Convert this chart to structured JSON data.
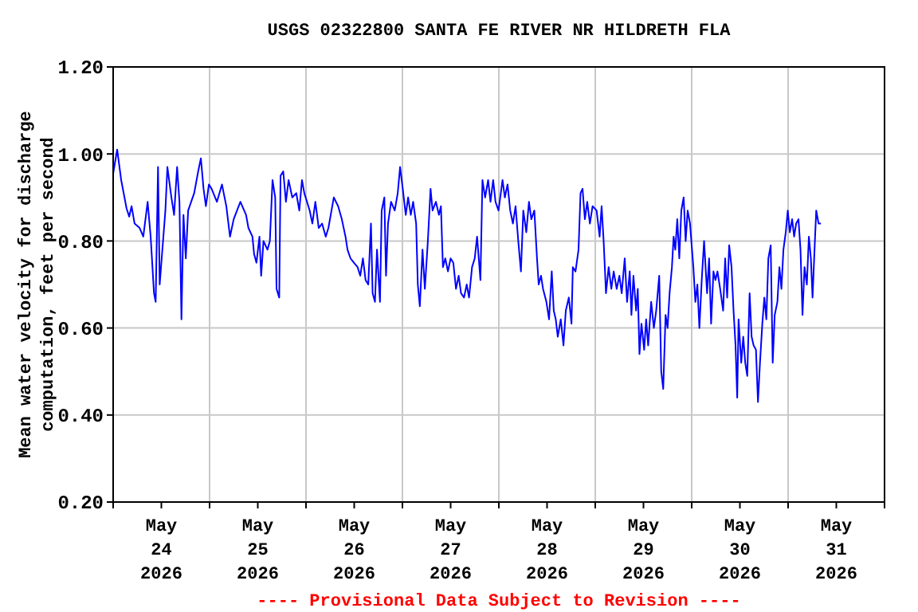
{
  "chart_data": {
    "type": "line",
    "title": "USGS 02322800 SANTA FE RIVER NR HILDRETH FLA",
    "ylabel": "Mean water velocity for discharge\ncomputation, feet per second",
    "annotations": [
      "---- Provisional Data Subject to Revision ----"
    ],
    "xlim": [
      "2026-05-24T00:00",
      "2026-06-01T00:00"
    ],
    "ylim": [
      0.2,
      1.2
    ],
    "yticks": [
      {
        "value": 0.2,
        "label": "0.20"
      },
      {
        "value": 0.4,
        "label": "0.40"
      },
      {
        "value": 0.6,
        "label": "0.60"
      },
      {
        "value": 0.8,
        "label": "0.80"
      },
      {
        "value": 1.0,
        "label": "1.00"
      },
      {
        "value": 1.2,
        "label": "1.20"
      }
    ],
    "xticks": [
      {
        "value": "2026-05-24T00:00",
        "label": null
      },
      {
        "value": "2026-05-24T12:00",
        "label": "May\n24\n2026"
      },
      {
        "value": "2026-05-25T00:00",
        "label": null
      },
      {
        "value": "2026-05-25T12:00",
        "label": "May\n25\n2026"
      },
      {
        "value": "2026-05-26T00:00",
        "label": null
      },
      {
        "value": "2026-05-26T12:00",
        "label": "May\n26\n2026"
      },
      {
        "value": "2026-05-27T00:00",
        "label": null
      },
      {
        "value": "2026-05-27T12:00",
        "label": "May\n27\n2026"
      },
      {
        "value": "2026-05-28T00:00",
        "label": null
      },
      {
        "value": "2026-05-28T12:00",
        "label": "May\n28\n2026"
      },
      {
        "value": "2026-05-29T00:00",
        "label": null
      },
      {
        "value": "2026-05-29T12:00",
        "label": "May\n29\n2026"
      },
      {
        "value": "2026-05-30T00:00",
        "label": null
      },
      {
        "value": "2026-05-30T12:00",
        "label": "May\n30\n2026"
      },
      {
        "value": "2026-05-31T00:00",
        "label": null
      },
      {
        "value": "2026-05-31T12:00",
        "label": "May\n31\n2026"
      },
      {
        "value": "2026-06-01T00:00",
        "label": null
      }
    ],
    "grid": true,
    "marker": "none",
    "line_style": "solid",
    "series": [
      {
        "color": "#0000ff",
        "x": [
          "2026-05-24T00:00",
          "2026-05-24T01:00",
          "2026-05-24T02:00",
          "2026-05-24T03:20",
          "2026-05-24T04:00",
          "2026-05-24T04:35",
          "2026-05-24T05:20",
          "2026-05-24T06:35",
          "2026-05-24T07:30",
          "2026-05-24T08:35",
          "2026-05-24T09:20",
          "2026-05-24T10:10",
          "2026-05-24T10:35",
          "2026-05-24T11:10",
          "2026-05-24T11:35",
          "2026-05-24T12:10",
          "2026-05-24T13:00",
          "2026-05-24T13:30",
          "2026-05-24T14:30",
          "2026-05-24T15:10",
          "2026-05-24T15:55",
          "2026-05-24T16:30",
          "2026-05-24T17:00",
          "2026-05-24T17:30",
          "2026-05-24T18:05",
          "2026-05-24T18:40",
          "2026-05-24T20:10",
          "2026-05-24T21:10",
          "2026-05-24T21:50",
          "2026-05-24T22:30",
          "2026-05-24T23:05",
          "2026-05-24T23:50",
          "2026-05-25T00:30",
          "2026-05-25T01:50",
          "2026-05-25T03:05",
          "2026-05-25T04:10",
          "2026-05-25T05:05",
          "2026-05-25T06:00",
          "2026-05-25T06:50",
          "2026-05-25T07:40",
          "2026-05-25T09:05",
          "2026-05-25T09:40",
          "2026-05-25T10:40",
          "2026-05-25T11:05",
          "2026-05-25T11:40",
          "2026-05-25T12:25",
          "2026-05-25T12:50",
          "2026-05-25T13:25",
          "2026-05-25T14:25",
          "2026-05-25T15:00",
          "2026-05-25T15:40",
          "2026-05-25T16:20",
          "2026-05-25T16:40",
          "2026-05-25T17:20",
          "2026-05-25T17:40",
          "2026-05-25T18:20",
          "2026-05-25T19:00",
          "2026-05-25T19:40",
          "2026-05-25T20:35",
          "2026-05-25T21:35",
          "2026-05-25T22:20",
          "2026-05-25T23:00",
          "2026-05-25T23:35",
          "2026-05-26T00:55",
          "2026-05-26T01:35",
          "2026-05-26T02:20",
          "2026-05-26T03:10",
          "2026-05-26T04:00",
          "2026-05-26T04:55",
          "2026-05-26T05:35",
          "2026-05-26T06:55",
          "2026-05-26T08:00",
          "2026-05-26T08:55",
          "2026-05-26T09:50",
          "2026-05-26T10:20",
          "2026-05-26T11:05",
          "2026-05-26T11:55",
          "2026-05-26T12:50",
          "2026-05-26T13:30",
          "2026-05-26T14:10",
          "2026-05-26T14:50",
          "2026-05-26T15:30",
          "2026-05-26T16:10",
          "2026-05-26T16:35",
          "2026-05-26T17:10",
          "2026-05-26T17:40",
          "2026-05-26T18:25",
          "2026-05-26T18:50",
          "2026-05-26T19:30",
          "2026-05-26T19:55",
          "2026-05-26T20:25",
          "2026-05-26T21:10",
          "2026-05-26T22:05",
          "2026-05-26T22:50",
          "2026-05-26T23:25",
          "2026-05-27T00:05",
          "2026-05-27T00:50",
          "2026-05-27T01:25",
          "2026-05-27T02:05",
          "2026-05-27T02:40",
          "2026-05-27T03:25",
          "2026-05-27T03:50",
          "2026-05-27T04:20",
          "2026-05-27T05:00",
          "2026-05-27T05:35",
          "2026-05-27T06:20",
          "2026-05-27T07:00",
          "2026-05-27T07:30",
          "2026-05-27T08:20",
          "2026-05-27T09:05",
          "2026-05-27T09:35",
          "2026-05-27T10:05",
          "2026-05-27T10:40",
          "2026-05-27T11:20",
          "2026-05-27T12:00",
          "2026-05-27T12:40",
          "2026-05-27T13:20",
          "2026-05-27T14:00",
          "2026-05-27T14:35",
          "2026-05-27T15:20",
          "2026-05-27T16:00",
          "2026-05-27T16:35",
          "2026-05-27T17:20",
          "2026-05-27T18:00",
          "2026-05-27T18:35",
          "2026-05-27T19:25",
          "2026-05-27T19:55",
          "2026-05-27T20:35",
          "2026-05-27T21:20",
          "2026-05-27T21:55",
          "2026-05-27T22:35",
          "2026-05-27T23:10",
          "2026-05-27T23:55",
          "2026-05-28T00:55",
          "2026-05-28T01:30",
          "2026-05-28T02:10",
          "2026-05-28T02:50",
          "2026-05-28T03:30",
          "2026-05-28T04:10",
          "2026-05-28T04:50",
          "2026-05-28T05:30",
          "2026-05-28T06:05",
          "2026-05-28T06:50",
          "2026-05-28T07:30",
          "2026-05-28T08:05",
          "2026-05-28T08:50",
          "2026-05-28T09:30",
          "2026-05-28T09:55",
          "2026-05-28T10:30",
          "2026-05-28T11:00",
          "2026-05-28T11:50",
          "2026-05-28T12:30",
          "2026-05-28T13:10",
          "2026-05-28T13:40",
          "2026-05-28T14:10",
          "2026-05-28T14:40",
          "2026-05-28T15:25",
          "2026-05-28T16:05",
          "2026-05-28T16:40",
          "2026-05-28T17:25",
          "2026-05-28T18:05",
          "2026-05-28T18:25",
          "2026-05-28T19:05",
          "2026-05-28T19:50",
          "2026-05-28T20:20",
          "2026-05-28T20:50",
          "2026-05-28T21:25",
          "2026-05-28T22:00",
          "2026-05-28T22:40",
          "2026-05-28T23:20",
          "2026-05-29T00:20",
          "2026-05-29T01:05",
          "2026-05-29T01:35",
          "2026-05-29T02:05",
          "2026-05-29T02:40",
          "2026-05-29T03:20",
          "2026-05-29T04:00",
          "2026-05-29T04:35",
          "2026-05-29T05:20",
          "2026-05-29T06:00",
          "2026-05-29T06:35",
          "2026-05-29T07:20",
          "2026-05-29T07:55",
          "2026-05-29T08:35",
          "2026-05-29T09:00",
          "2026-05-29T09:30",
          "2026-05-29T10:10",
          "2026-05-29T10:35",
          "2026-05-29T11:00",
          "2026-05-29T11:30",
          "2026-05-29T12:10",
          "2026-05-29T12:40",
          "2026-05-29T13:10",
          "2026-05-29T13:55",
          "2026-05-29T14:35",
          "2026-05-29T15:10",
          "2026-05-29T15:55",
          "2026-05-29T16:25",
          "2026-05-29T16:55",
          "2026-05-29T17:30",
          "2026-05-29T18:00",
          "2026-05-29T18:30",
          "2026-05-29T19:05",
          "2026-05-29T19:30",
          "2026-05-29T19:55",
          "2026-05-29T20:25",
          "2026-05-29T20:55",
          "2026-05-29T21:25",
          "2026-05-29T22:00",
          "2026-05-29T22:30",
          "2026-05-29T23:00",
          "2026-05-29T23:35",
          "2026-05-30T00:25",
          "2026-05-30T00:55",
          "2026-05-30T01:25",
          "2026-05-30T01:55",
          "2026-05-30T02:30",
          "2026-05-30T03:05",
          "2026-05-30T03:50",
          "2026-05-30T04:20",
          "2026-05-30T04:50",
          "2026-05-30T05:25",
          "2026-05-30T05:55",
          "2026-05-30T06:25",
          "2026-05-30T07:05",
          "2026-05-30T07:50",
          "2026-05-30T08:20",
          "2026-05-30T08:50",
          "2026-05-30T09:20",
          "2026-05-30T09:55",
          "2026-05-30T10:25",
          "2026-05-30T10:55",
          "2026-05-30T11:20",
          "2026-05-30T11:40",
          "2026-05-30T12:20",
          "2026-05-30T12:50",
          "2026-05-30T13:20",
          "2026-05-30T13:50",
          "2026-05-30T14:25",
          "2026-05-30T14:55",
          "2026-05-30T15:25",
          "2026-05-30T16:00",
          "2026-05-30T16:30",
          "2026-05-30T17:00",
          "2026-05-30T17:35",
          "2026-05-30T18:05",
          "2026-05-30T18:35",
          "2026-05-30T19:05",
          "2026-05-30T19:40",
          "2026-05-30T20:10",
          "2026-05-30T20:40",
          "2026-05-30T21:20",
          "2026-05-30T21:50",
          "2026-05-30T22:20",
          "2026-05-30T22:50",
          "2026-05-30T23:25",
          "2026-05-30T23:55",
          "2026-05-31T00:25",
          "2026-05-31T01:00",
          "2026-05-31T01:30",
          "2026-05-31T02:00",
          "2026-05-31T02:35",
          "2026-05-31T03:05",
          "2026-05-31T03:35",
          "2026-05-31T04:05",
          "2026-05-31T04:40",
          "2026-05-31T05:10",
          "2026-05-31T05:40",
          "2026-05-31T06:05",
          "2026-05-31T06:40",
          "2026-05-31T07:00",
          "2026-05-31T07:35",
          "2026-05-31T08:10"
        ],
        "values": [
          0.955,
          1.01,
          0.94,
          0.875,
          0.856,
          0.88,
          0.84,
          0.83,
          0.81,
          0.89,
          0.81,
          0.68,
          0.66,
          0.97,
          0.7,
          0.77,
          0.87,
          0.97,
          0.9,
          0.86,
          0.97,
          0.89,
          0.62,
          0.86,
          0.76,
          0.87,
          0.91,
          0.96,
          0.99,
          0.92,
          0.88,
          0.93,
          0.92,
          0.89,
          0.93,
          0.88,
          0.81,
          0.85,
          0.87,
          0.89,
          0.86,
          0.83,
          0.81,
          0.77,
          0.75,
          0.81,
          0.72,
          0.8,
          0.78,
          0.8,
          0.94,
          0.9,
          0.69,
          0.67,
          0.95,
          0.96,
          0.89,
          0.94,
          0.9,
          0.91,
          0.87,
          0.94,
          0.91,
          0.87,
          0.84,
          0.89,
          0.83,
          0.84,
          0.81,
          0.83,
          0.9,
          0.88,
          0.85,
          0.81,
          0.78,
          0.76,
          0.75,
          0.74,
          0.72,
          0.76,
          0.71,
          0.7,
          0.84,
          0.68,
          0.66,
          0.78,
          0.66,
          0.87,
          0.9,
          0.72,
          0.84,
          0.89,
          0.87,
          0.91,
          0.97,
          0.92,
          0.86,
          0.9,
          0.86,
          0.89,
          0.84,
          0.7,
          0.65,
          0.78,
          0.69,
          0.8,
          0.92,
          0.87,
          0.89,
          0.86,
          0.88,
          0.74,
          0.76,
          0.73,
          0.76,
          0.75,
          0.69,
          0.72,
          0.68,
          0.67,
          0.7,
          0.67,
          0.74,
          0.76,
          0.81,
          0.71,
          0.94,
          0.9,
          0.94,
          0.89,
          0.94,
          0.89,
          0.87,
          0.94,
          0.9,
          0.93,
          0.87,
          0.84,
          0.88,
          0.8,
          0.73,
          0.87,
          0.82,
          0.89,
          0.85,
          0.87,
          0.76,
          0.7,
          0.72,
          0.69,
          0.66,
          0.62,
          0.73,
          0.64,
          0.62,
          0.58,
          0.62,
          0.56,
          0.64,
          0.67,
          0.61,
          0.74,
          0.73,
          0.78,
          0.91,
          0.92,
          0.85,
          0.89,
          0.84,
          0.88,
          0.87,
          0.81,
          0.88,
          0.8,
          0.68,
          0.74,
          0.69,
          0.73,
          0.69,
          0.72,
          0.68,
          0.76,
          0.66,
          0.73,
          0.63,
          0.72,
          0.64,
          0.69,
          0.54,
          0.61,
          0.55,
          0.62,
          0.56,
          0.66,
          0.6,
          0.64,
          0.72,
          0.5,
          0.46,
          0.63,
          0.6,
          0.68,
          0.74,
          0.81,
          0.78,
          0.85,
          0.76,
          0.87,
          0.9,
          0.8,
          0.87,
          0.84,
          0.74,
          0.66,
          0.7,
          0.6,
          0.71,
          0.8,
          0.68,
          0.76,
          0.61,
          0.73,
          0.71,
          0.73,
          0.69,
          0.64,
          0.76,
          0.67,
          0.79,
          0.74,
          0.64,
          0.56,
          0.44,
          0.62,
          0.52,
          0.58,
          0.52,
          0.49,
          0.68,
          0.58,
          0.56,
          0.55,
          0.43,
          0.52,
          0.61,
          0.67,
          0.62,
          0.76,
          0.79,
          0.52,
          0.63,
          0.66,
          0.74,
          0.69,
          0.78,
          0.82,
          0.87,
          0.82,
          0.85,
          0.81,
          0.84,
          0.85,
          0.78,
          0.63,
          0.74,
          0.7,
          0.81,
          0.76,
          0.67,
          0.8,
          0.87,
          0.84,
          0.84
        ]
      }
    ]
  }
}
